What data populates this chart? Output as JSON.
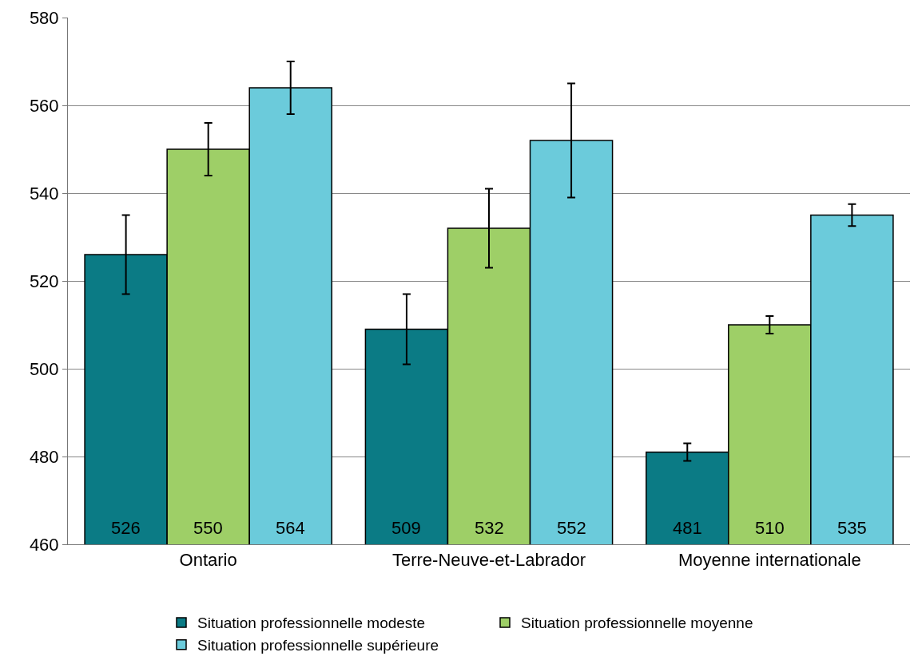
{
  "chart_data": {
    "type": "bar",
    "categories": [
      "Ontario",
      "Terre-Neuve-et-Labrador",
      "Moyenne internationale"
    ],
    "series": [
      {
        "name": "Situation professionnelle modeste",
        "color": "#0b7b85",
        "values": [
          526,
          509,
          481
        ],
        "errors": [
          9,
          8,
          2
        ]
      },
      {
        "name": "Situation professionnelle moyenne",
        "color": "#9ecf67",
        "values": [
          550,
          532,
          510
        ],
        "errors": [
          6,
          9,
          2
        ]
      },
      {
        "name": "Situation professionnelle supérieure",
        "color": "#6bcbdb",
        "values": [
          564,
          552,
          535
        ],
        "errors": [
          6,
          13,
          2.5
        ]
      }
    ],
    "ylim": [
      460,
      580
    ],
    "yticks": [
      460,
      480,
      500,
      520,
      540,
      560,
      580
    ],
    "grid": "y",
    "legend": "bottom",
    "data_labels": true
  }
}
